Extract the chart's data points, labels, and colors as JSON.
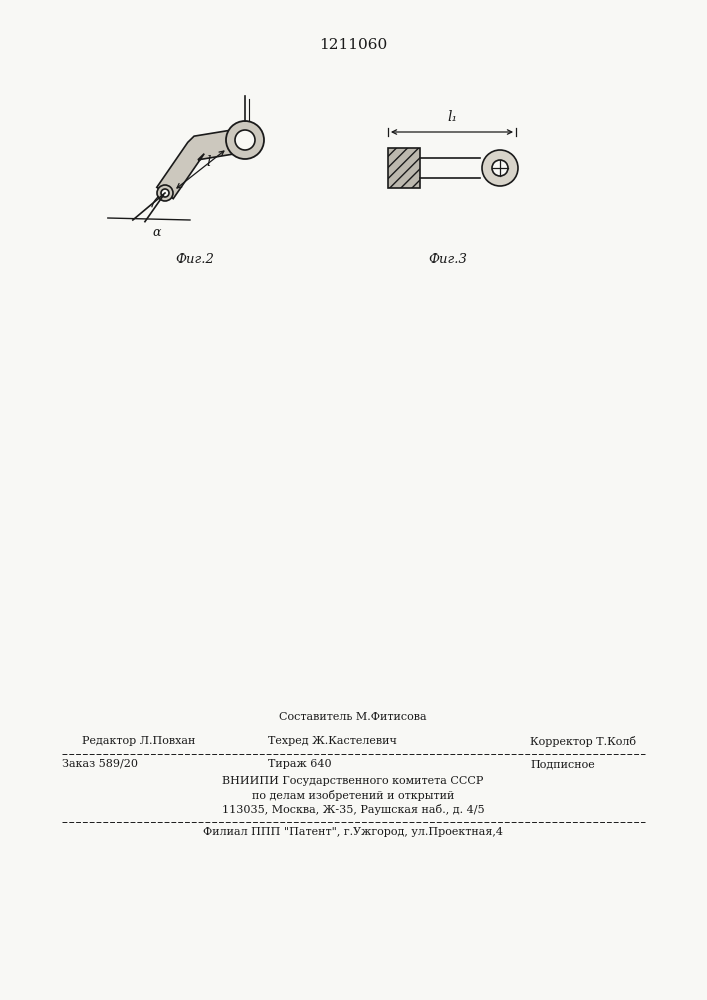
{
  "patent_number": "1211060",
  "fig2_label": "Фиг.2",
  "fig3_label": "Фиг.3",
  "dim_l": "l",
  "dim_l1": "l₁",
  "dim_alpha": "α",
  "editor_line": "Редактор Л.Повхан",
  "techred_line": "Техред Ж.Кастелевич",
  "corrector_line": "Корректор Т.Колб",
  "composer_line": "Составитель М.Фитисова",
  "order_line": "Заказ 589/20",
  "tirage_line": "Тираж 640",
  "podpisnoe_line": "Подписное",
  "vniip_line1": "ВНИИПИ Государственного комитета СССР",
  "vniip_line2": "по делам изобретений и открытий",
  "vniip_line3": "113035, Москва, Ж-35, Раушская наб., д. 4/5",
  "filial_line": "Филиал ППП \"Патент\", г.Ужгород, ул.Проектная,4",
  "bg_color": "#f8f8f5",
  "line_color": "#1a1a1a",
  "text_color": "#1a1a1a"
}
